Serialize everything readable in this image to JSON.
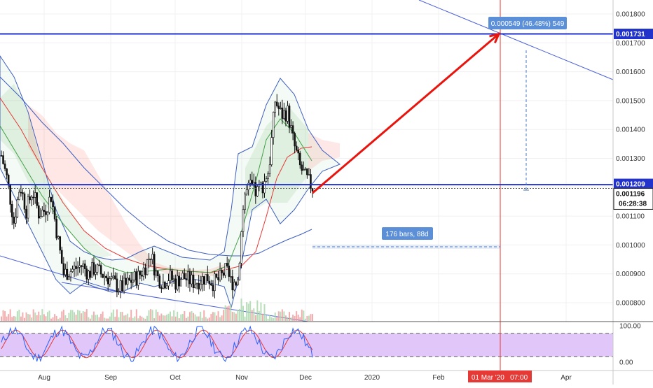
{
  "chart_data": {
    "type": "candlestick",
    "instrument_view": "daily price chart with indicators and drawings",
    "x_axis": {
      "labels": [
        "Aug",
        "Sep",
        "Oct",
        "Nov",
        "Dec",
        "2020",
        "Feb",
        "Apr"
      ],
      "highlighted_label": "01 Mar '20   07:00"
    },
    "y_axis": {
      "ticks": [
        "0.001800",
        "0.001700",
        "0.001600",
        "0.001500",
        "0.001400",
        "0.001300",
        "0.001100",
        "0.001000",
        "0.000900",
        "0.000800"
      ],
      "tick_values": [
        0.0018,
        0.0017,
        0.0016,
        0.0015,
        0.0014,
        0.0013,
        0.0011,
        0.001,
        0.0009,
        0.0008
      ],
      "range": [
        0.00075,
        0.00185
      ]
    },
    "price_labels": {
      "target": "0.001731",
      "support": "0.001209",
      "last": "0.001196",
      "countdown": "06:28:38"
    },
    "levels": {
      "target": 0.001731,
      "support": 0.001209,
      "last": 0.001196
    },
    "annotations": {
      "price_range": "0.000549 (46.48%) 549",
      "date_range": "176 bars, 88d"
    },
    "projection": {
      "from_price": 0.00118,
      "to_price": 0.001731
    },
    "price_path": [
      0.00131,
      0.00122,
      0.00108,
      0.00121,
      0.00112,
      0.00119,
      0.00111,
      0.00112,
      0.00117,
      0.00103,
      0.0009,
      0.00091,
      0.00092,
      0.00093,
      0.0009,
      0.00092,
      0.0009,
      0.00089,
      0.00087,
      0.00085,
      0.00086,
      0.00088,
      0.00089,
      0.00092,
      0.00097,
      0.00089,
      0.00087,
      0.00089,
      0.00087,
      0.00089,
      0.00088,
      0.00087,
      0.00088,
      0.00089,
      0.00087,
      0.00088,
      0.00091,
      0.00087,
      0.00088,
      0.00117,
      0.0012,
      0.00118,
      0.00121,
      0.00126,
      0.0015,
      0.00145,
      0.00146,
      0.00135,
      0.00127,
      0.00123,
      0.0012
    ],
    "oscillator": {
      "ticks": [
        "100.00",
        "0.00"
      ],
      "tick_values": [
        100,
        0
      ],
      "bands": [
        80,
        20
      ]
    }
  }
}
